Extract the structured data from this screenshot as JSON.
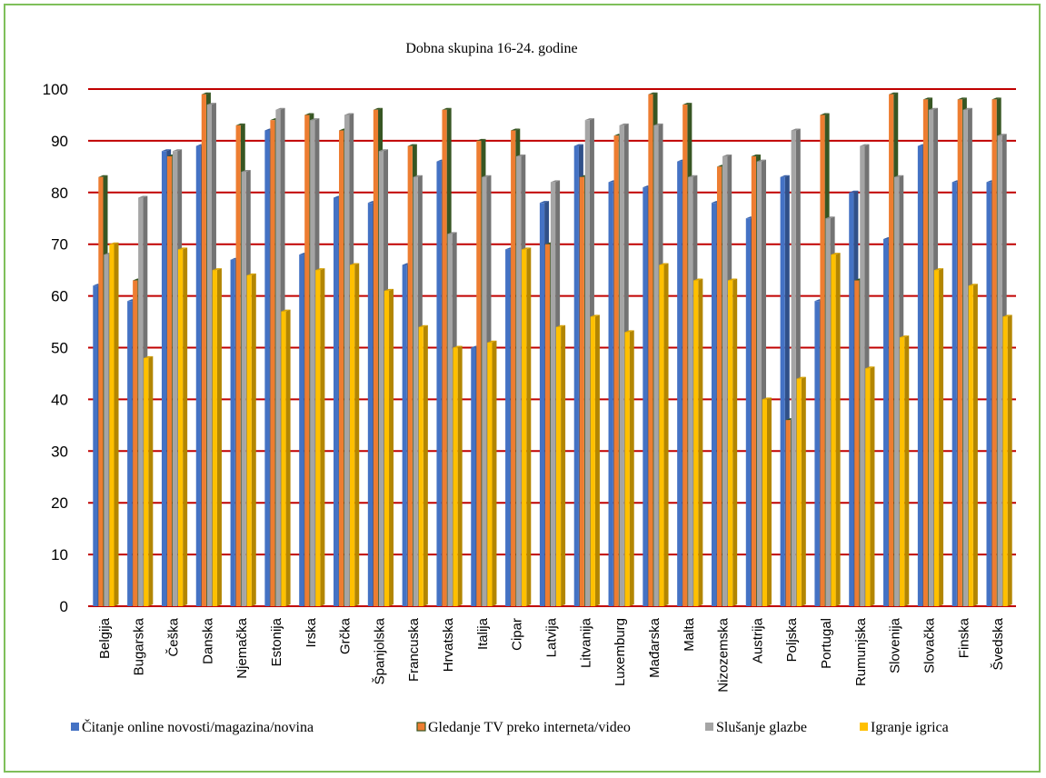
{
  "chart_data": {
    "type": "bar",
    "title": "Dobna skupina 16-24. godine",
    "xlabel": "",
    "ylabel": "",
    "ylim": [
      0,
      100
    ],
    "yticks": [
      0,
      10,
      20,
      30,
      40,
      50,
      60,
      70,
      80,
      90,
      100
    ],
    "grid": true,
    "legend_position": "bottom",
    "categories": [
      "Belgija",
      "Bugarska",
      "Češka",
      "Danska",
      "Njemačka",
      "Estonija",
      "Irska",
      "Grčka",
      "Španjolska",
      "Francuska",
      "Hrvatska",
      "Italija",
      "Cipar",
      "Latvija",
      "Litvanija",
      "Luxemburg",
      "Mađarska",
      "Malta",
      "Nizozemska",
      "Austrija",
      "Poljska",
      "Portugal",
      "Rumunjska",
      "Slovenija",
      "Slovačka",
      "Finska",
      "Švedska"
    ],
    "series": [
      {
        "name": "Čitanje online novosti/magazina/novina",
        "color": "#4472c4",
        "values": [
          62,
          59,
          88,
          89,
          67,
          92,
          68,
          79,
          78,
          66,
          86,
          50,
          69,
          78,
          89,
          82,
          81,
          86,
          78,
          75,
          83,
          59,
          80,
          71,
          89,
          82,
          82
        ]
      },
      {
        "name": "Gledanje TV preko interneta/video",
        "color": "#ed7d31",
        "values": [
          83,
          63,
          87,
          99,
          93,
          94,
          95,
          92,
          96,
          89,
          96,
          90,
          92,
          70,
          83,
          91,
          99,
          97,
          85,
          87,
          36,
          95,
          63,
          99,
          98,
          98,
          98
        ]
      },
      {
        "name": "Slušanje glazbe",
        "color": "#a5a5a5",
        "values": [
          68,
          79,
          88,
          97,
          84,
          96,
          94,
          95,
          88,
          83,
          72,
          83,
          87,
          82,
          94,
          93,
          93,
          83,
          87,
          86,
          92,
          75,
          89,
          83,
          96,
          96,
          91
        ]
      },
      {
        "name": "Igranje igrica",
        "color": "#ffc000",
        "values": [
          70,
          48,
          69,
          65,
          64,
          57,
          65,
          66,
          61,
          54,
          50,
          51,
          69,
          54,
          56,
          53,
          66,
          63,
          63,
          40,
          44,
          68,
          46,
          52,
          65,
          62,
          56
        ]
      }
    ]
  },
  "colors": {
    "frame_border": "#7fbf5a",
    "gridline": "#c00000",
    "orange_side": "#375623"
  }
}
